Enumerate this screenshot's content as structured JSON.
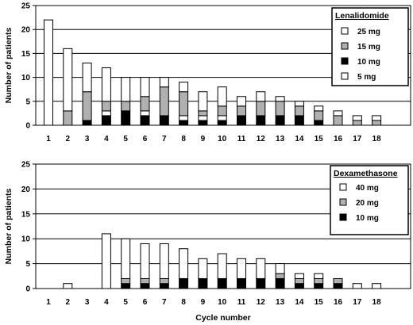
{
  "chart_data": [
    {
      "type": "bar",
      "stacked": true,
      "categories": [
        "1",
        "2",
        "3",
        "4",
        "5",
        "6",
        "7",
        "8",
        "9",
        "10",
        "11",
        "12",
        "13",
        "14",
        "15",
        "16",
        "17",
        "18"
      ],
      "ylabel": "Number of patients",
      "xlabel": "",
      "ylim": [
        0,
        25
      ],
      "yticks": [
        0,
        5,
        10,
        15,
        20,
        25
      ],
      "grid": true,
      "legend": {
        "title": "Lenalidomide",
        "position": "top-right"
      },
      "series": [
        {
          "name": "10 mg",
          "color": "#000000",
          "values": [
            0,
            0,
            1,
            2,
            3,
            2,
            2,
            1,
            1,
            1,
            2,
            2,
            2,
            2,
            1,
            0,
            0,
            0
          ]
        },
        {
          "name": "5 mg",
          "color": "#ffffff",
          "values": [
            0,
            0,
            0,
            1,
            0,
            1,
            0,
            1,
            1,
            1,
            0,
            0,
            0,
            0,
            0,
            0,
            0,
            0
          ]
        },
        {
          "name": "15 mg",
          "color": "#b0b0b0",
          "values": [
            0,
            3,
            6,
            2,
            2,
            3,
            6,
            5,
            1,
            2,
            2,
            3,
            3,
            2,
            2,
            2,
            1,
            1
          ]
        },
        {
          "name": "25 mg",
          "color": "#ffffff",
          "values": [
            22,
            13,
            6,
            7,
            5,
            4,
            2,
            2,
            4,
            4,
            2,
            2,
            1,
            1,
            1,
            1,
            1,
            1
          ]
        }
      ],
      "legend_order": [
        "25 mg",
        "15 mg",
        "10 mg",
        "5 mg"
      ]
    },
    {
      "type": "bar",
      "stacked": true,
      "categories": [
        "1",
        "2",
        "3",
        "4",
        "5",
        "6",
        "7",
        "8",
        "9",
        "10",
        "11",
        "12",
        "13",
        "14",
        "15",
        "16",
        "17",
        "18"
      ],
      "ylabel": "Number of patients",
      "xlabel": "Cycle number",
      "ylim": [
        0,
        25
      ],
      "yticks": [
        0,
        5,
        10,
        15,
        20,
        25
      ],
      "grid": true,
      "legend": {
        "title": "Dexamethasone",
        "position": "top-right"
      },
      "series": [
        {
          "name": "10 mg",
          "color": "#000000",
          "values": [
            0,
            0,
            0,
            0,
            1,
            1,
            1,
            2,
            2,
            2,
            2,
            2,
            2,
            1,
            1,
            1,
            0,
            0
          ]
        },
        {
          "name": "20 mg",
          "color": "#b0b0b0",
          "values": [
            0,
            0,
            0,
            0,
            1,
            1,
            1,
            0,
            0,
            0,
            0,
            0,
            1,
            1,
            1,
            1,
            0,
            0
          ]
        },
        {
          "name": "40 mg",
          "color": "#ffffff",
          "values": [
            0,
            1,
            0,
            11,
            8,
            7,
            7,
            6,
            4,
            5,
            4,
            4,
            2,
            1,
            1,
            0,
            1,
            1
          ]
        }
      ],
      "legend_order": [
        "40 mg",
        "20 mg",
        "10 mg"
      ]
    }
  ]
}
